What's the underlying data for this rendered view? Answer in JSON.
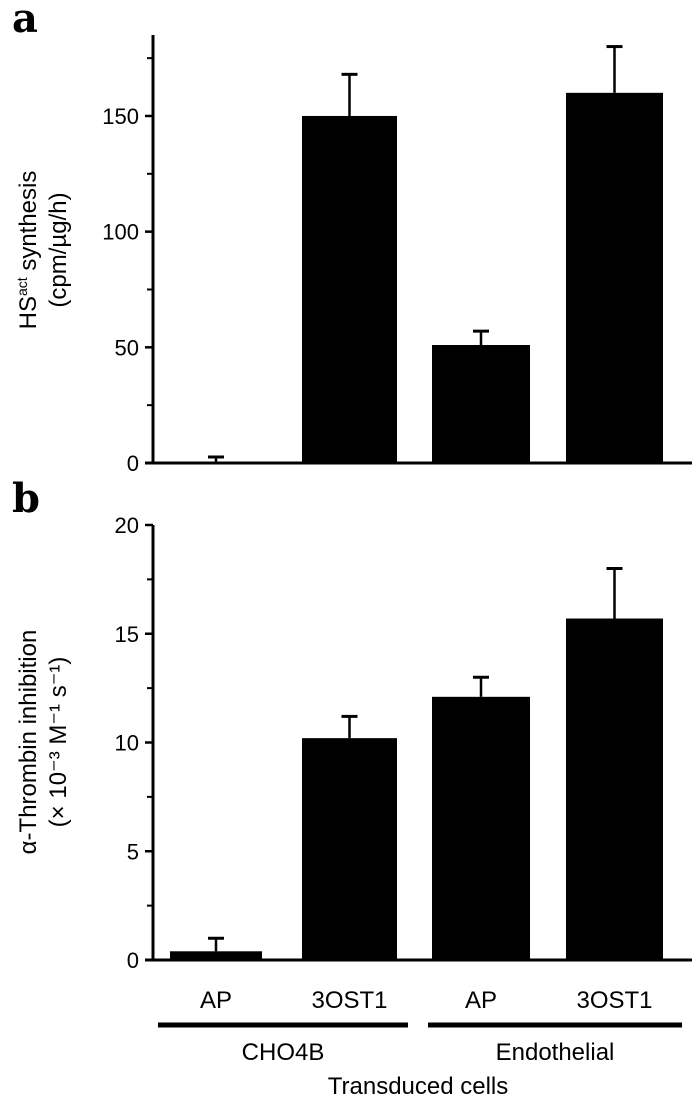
{
  "chart_data": [
    {
      "type": "bar",
      "panel_label": "a",
      "ylabel_line1": "HS",
      "ylabel_sup": "act",
      "ylabel_line1_rest": " synthesis",
      "ylabel_line2": "(cpm/µg/h)",
      "categories": [
        "AP",
        "3OST1",
        "AP",
        "3OST1"
      ],
      "groups": [
        "CHO4B",
        "CHO4B",
        "Endothelial",
        "Endothelial"
      ],
      "values": [
        0,
        150,
        51,
        160
      ],
      "error_upper": [
        2.6,
        168,
        57,
        180
      ],
      "ylim": [
        0,
        185
      ],
      "yticks": [
        0,
        50,
        100,
        150
      ],
      "minor_ticks": [
        25,
        75,
        125,
        175
      ],
      "color": "#000000"
    },
    {
      "type": "bar",
      "panel_label": "b",
      "ylabel_line1": "α-Thrombin inhibition",
      "ylabel_line2": "(× 10⁻³  M⁻¹ s⁻¹)",
      "categories": [
        "AP",
        "3OST1",
        "AP",
        "3OST1"
      ],
      "groups": [
        "CHO4B",
        "CHO4B",
        "Endothelial",
        "Endothelial"
      ],
      "values": [
        0.4,
        10.2,
        12.1,
        15.7
      ],
      "error_upper": [
        1.0,
        11.2,
        13.0,
        18.0
      ],
      "ylim": [
        0,
        20
      ],
      "yticks": [
        0,
        5,
        10,
        15,
        20
      ],
      "minor_ticks": [
        2.5,
        7.5,
        12.5,
        17.5
      ],
      "color": "#000000"
    }
  ],
  "xaxis": {
    "group_labels": [
      "CHO4B",
      "Endothelial"
    ],
    "title": "Transduced cells"
  }
}
